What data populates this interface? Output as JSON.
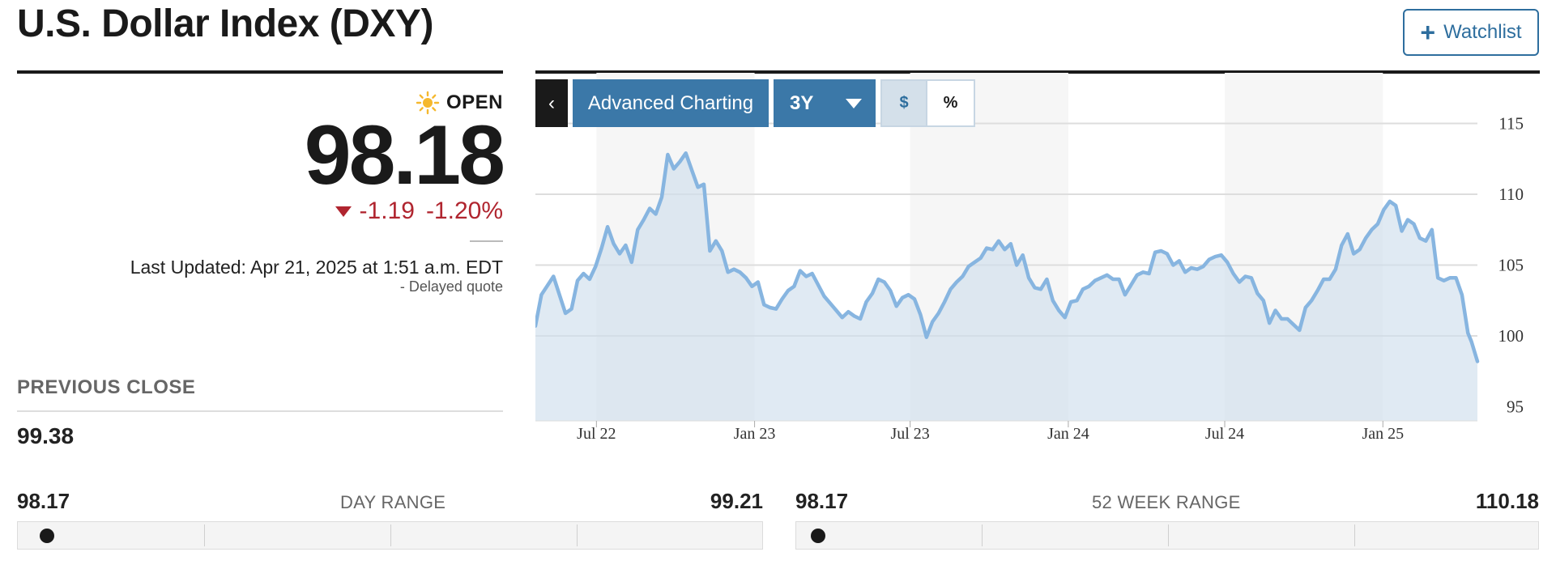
{
  "header": {
    "title": "U.S. Dollar Index (DXY)",
    "watchlist_label": "Watchlist"
  },
  "quote": {
    "status": "OPEN",
    "price": "98.18",
    "change": "-1.19",
    "change_pct": "-1.20%",
    "last_updated": "Last Updated: Apr 21, 2025 at 1:51 a.m. EDT",
    "delayed": "-  Delayed quote"
  },
  "previous_close": {
    "label": "PREVIOUS CLOSE",
    "value": "99.38"
  },
  "toolbar": {
    "back_glyph": "‹",
    "advanced_label": "Advanced Charting",
    "range_label": "3Y",
    "currency_label": "$",
    "percent_label": "%"
  },
  "colors": {
    "accent": "#3b78a8",
    "line": "#87b5e0",
    "down": "#b0252f"
  },
  "day_range": {
    "label": "DAY RANGE",
    "low": "98.17",
    "high": "99.21",
    "position": 0.01
  },
  "week52_range": {
    "label": "52 WEEK RANGE",
    "low": "98.17",
    "high": "110.18",
    "position": 0.0
  },
  "chart_data": {
    "type": "area",
    "x_ticks": [
      "Jul 22",
      "Jan 23",
      "Jul 23",
      "Jan 24",
      "Jul 24",
      "Jan 25"
    ],
    "y_ticks": [
      115,
      110,
      105,
      100,
      95
    ],
    "ylim": [
      94,
      118
    ],
    "xlim": [
      "2022-04-21",
      "2025-04-21"
    ],
    "grid": true,
    "series": [
      {
        "points": [
          [
            "2022-04-21",
            100.7
          ],
          [
            "2022-04-28",
            102.9
          ],
          [
            "2022-05-12",
            104.2
          ],
          [
            "2022-05-26",
            101.6
          ],
          [
            "2022-06-02",
            101.9
          ],
          [
            "2022-06-09",
            103.9
          ],
          [
            "2022-06-16",
            104.4
          ],
          [
            "2022-06-23",
            104.0
          ],
          [
            "2022-06-30",
            104.9
          ],
          [
            "2022-07-07",
            106.2
          ],
          [
            "2022-07-14",
            107.7
          ],
          [
            "2022-07-21",
            106.5
          ],
          [
            "2022-07-28",
            105.8
          ],
          [
            "2022-08-04",
            106.4
          ],
          [
            "2022-08-11",
            105.2
          ],
          [
            "2022-08-18",
            107.5
          ],
          [
            "2022-08-25",
            108.2
          ],
          [
            "2022-09-01",
            109.0
          ],
          [
            "2022-09-08",
            108.6
          ],
          [
            "2022-09-15",
            109.8
          ],
          [
            "2022-09-22",
            112.8
          ],
          [
            "2022-09-29",
            111.8
          ],
          [
            "2022-10-06",
            112.3
          ],
          [
            "2022-10-13",
            112.9
          ],
          [
            "2022-10-20",
            111.7
          ],
          [
            "2022-10-27",
            110.5
          ],
          [
            "2022-11-03",
            110.7
          ],
          [
            "2022-11-10",
            106.0
          ],
          [
            "2022-11-17",
            106.7
          ],
          [
            "2022-11-24",
            106.0
          ],
          [
            "2022-12-01",
            104.5
          ],
          [
            "2022-12-08",
            104.7
          ],
          [
            "2022-12-15",
            104.5
          ],
          [
            "2022-12-22",
            104.1
          ],
          [
            "2022-12-29",
            103.5
          ],
          [
            "2023-01-05",
            103.8
          ],
          [
            "2023-01-12",
            102.2
          ],
          [
            "2023-01-19",
            102.0
          ],
          [
            "2023-01-26",
            101.9
          ],
          [
            "2023-02-02",
            102.6
          ],
          [
            "2023-02-09",
            103.2
          ],
          [
            "2023-02-16",
            103.5
          ],
          [
            "2023-02-23",
            104.6
          ],
          [
            "2023-03-02",
            104.2
          ],
          [
            "2023-03-09",
            104.4
          ],
          [
            "2023-03-16",
            103.6
          ],
          [
            "2023-03-23",
            102.8
          ],
          [
            "2023-04-06",
            101.8
          ],
          [
            "2023-04-13",
            101.3
          ],
          [
            "2023-04-20",
            101.7
          ],
          [
            "2023-04-27",
            101.4
          ],
          [
            "2023-05-04",
            101.2
          ],
          [
            "2023-05-11",
            102.4
          ],
          [
            "2023-05-18",
            103.0
          ],
          [
            "2023-05-25",
            104.0
          ],
          [
            "2023-06-01",
            103.8
          ],
          [
            "2023-06-08",
            103.2
          ],
          [
            "2023-06-15",
            102.1
          ],
          [
            "2023-06-22",
            102.7
          ],
          [
            "2023-06-29",
            102.9
          ],
          [
            "2023-07-06",
            102.6
          ],
          [
            "2023-07-13",
            101.5
          ],
          [
            "2023-07-20",
            99.9
          ],
          [
            "2023-07-27",
            101.0
          ],
          [
            "2023-08-03",
            101.6
          ],
          [
            "2023-08-10",
            102.4
          ],
          [
            "2023-08-17",
            103.3
          ],
          [
            "2023-08-24",
            103.8
          ],
          [
            "2023-08-31",
            104.2
          ],
          [
            "2023-09-07",
            104.9
          ],
          [
            "2023-09-14",
            105.2
          ],
          [
            "2023-09-21",
            105.5
          ],
          [
            "2023-09-28",
            106.2
          ],
          [
            "2023-10-05",
            106.1
          ],
          [
            "2023-10-12",
            106.7
          ],
          [
            "2023-10-19",
            106.1
          ],
          [
            "2023-10-26",
            106.5
          ],
          [
            "2023-11-02",
            105.0
          ],
          [
            "2023-11-09",
            105.7
          ],
          [
            "2023-11-16",
            104.1
          ],
          [
            "2023-11-23",
            103.4
          ],
          [
            "2023-11-30",
            103.3
          ],
          [
            "2023-12-07",
            104.0
          ],
          [
            "2023-12-14",
            102.5
          ],
          [
            "2023-12-21",
            101.8
          ],
          [
            "2023-12-28",
            101.3
          ],
          [
            "2024-01-04",
            102.4
          ],
          [
            "2024-01-11",
            102.5
          ],
          [
            "2024-01-18",
            103.3
          ],
          [
            "2024-01-25",
            103.5
          ],
          [
            "2024-02-01",
            103.9
          ],
          [
            "2024-02-08",
            104.1
          ],
          [
            "2024-02-15",
            104.3
          ],
          [
            "2024-02-22",
            104.0
          ],
          [
            "2024-02-29",
            104.0
          ],
          [
            "2024-03-07",
            102.9
          ],
          [
            "2024-03-14",
            103.6
          ],
          [
            "2024-03-21",
            104.3
          ],
          [
            "2024-03-28",
            104.5
          ],
          [
            "2024-04-04",
            104.4
          ],
          [
            "2024-04-11",
            105.9
          ],
          [
            "2024-04-18",
            106.0
          ],
          [
            "2024-04-25",
            105.8
          ],
          [
            "2024-05-02",
            105.0
          ],
          [
            "2024-05-09",
            105.3
          ],
          [
            "2024-05-16",
            104.5
          ],
          [
            "2024-05-23",
            104.8
          ],
          [
            "2024-05-30",
            104.7
          ],
          [
            "2024-06-06",
            104.9
          ],
          [
            "2024-06-13",
            105.4
          ],
          [
            "2024-06-20",
            105.6
          ],
          [
            "2024-06-27",
            105.7
          ],
          [
            "2024-07-04",
            105.2
          ],
          [
            "2024-07-11",
            104.4
          ],
          [
            "2024-07-18",
            103.8
          ],
          [
            "2024-07-25",
            104.2
          ],
          [
            "2024-08-01",
            104.1
          ],
          [
            "2024-08-08",
            103.0
          ],
          [
            "2024-08-15",
            102.5
          ],
          [
            "2024-08-22",
            100.9
          ],
          [
            "2024-08-29",
            101.8
          ],
          [
            "2024-09-05",
            101.2
          ],
          [
            "2024-09-12",
            101.2
          ],
          [
            "2024-09-19",
            100.8
          ],
          [
            "2024-09-26",
            100.4
          ],
          [
            "2024-10-03",
            102.0
          ],
          [
            "2024-10-10",
            102.5
          ],
          [
            "2024-10-17",
            103.2
          ],
          [
            "2024-10-24",
            104.0
          ],
          [
            "2024-10-31",
            104.0
          ],
          [
            "2024-11-07",
            104.7
          ],
          [
            "2024-11-14",
            106.4
          ],
          [
            "2024-11-21",
            107.2
          ],
          [
            "2024-11-28",
            105.8
          ],
          [
            "2024-12-05",
            106.1
          ],
          [
            "2024-12-12",
            106.9
          ],
          [
            "2024-12-19",
            107.5
          ],
          [
            "2024-12-26",
            107.9
          ],
          [
            "2025-01-02",
            108.9
          ],
          [
            "2025-01-09",
            109.5
          ],
          [
            "2025-01-16",
            109.2
          ],
          [
            "2025-01-23",
            107.4
          ],
          [
            "2025-01-30",
            108.2
          ],
          [
            "2025-02-06",
            107.9
          ],
          [
            "2025-02-13",
            106.9
          ],
          [
            "2025-02-20",
            106.7
          ],
          [
            "2025-02-27",
            107.5
          ],
          [
            "2025-03-06",
            104.1
          ],
          [
            "2025-03-13",
            103.9
          ],
          [
            "2025-03-20",
            104.1
          ],
          [
            "2025-03-27",
            104.1
          ],
          [
            "2025-04-03",
            102.9
          ],
          [
            "2025-04-10",
            100.2
          ],
          [
            "2025-04-14",
            99.6
          ],
          [
            "2025-04-21",
            98.2
          ]
        ]
      }
    ]
  }
}
